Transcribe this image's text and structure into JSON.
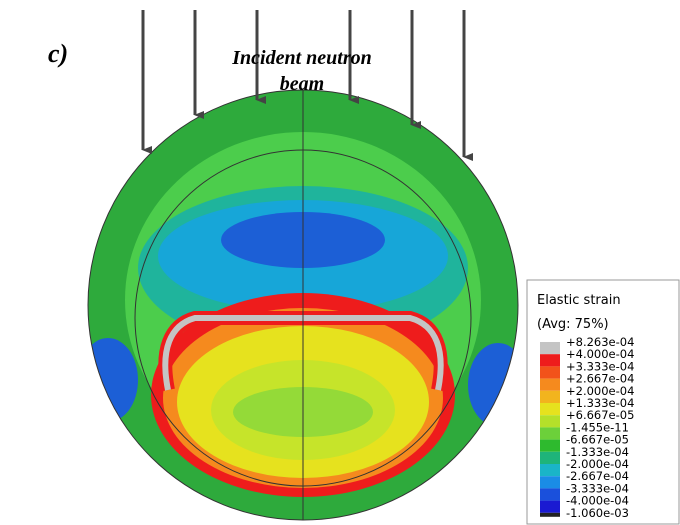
{
  "panel_label": "c)",
  "beam_label": {
    "line1": "Incident neutron",
    "line2": "beam"
  },
  "legend": {
    "title": "Elastic strain",
    "subtitle": "(Avg: 75%)",
    "labels": [
      "+8.263e-04",
      "+4.000e-04",
      "+3.333e-04",
      "+2.667e-04",
      "+2.000e-04",
      "+1.333e-04",
      "+6.667e-05",
      "-1.455e-11",
      "-6.667e-05",
      "-1.333e-04",
      "-2.000e-04",
      "-2.667e-04",
      "-3.333e-04",
      "-4.000e-04",
      "-1.060e-03"
    ],
    "colors": [
      "#c4c4c4",
      "#ee1c1c",
      "#f2521a",
      "#f58a1e",
      "#f2b41e",
      "#e6e21e",
      "#b4e02a",
      "#6cd03a",
      "#2eba2e",
      "#1eb47a",
      "#1ab4c8",
      "#1a8ce6",
      "#1a50dc",
      "#1a1ad2"
    ]
  }
}
